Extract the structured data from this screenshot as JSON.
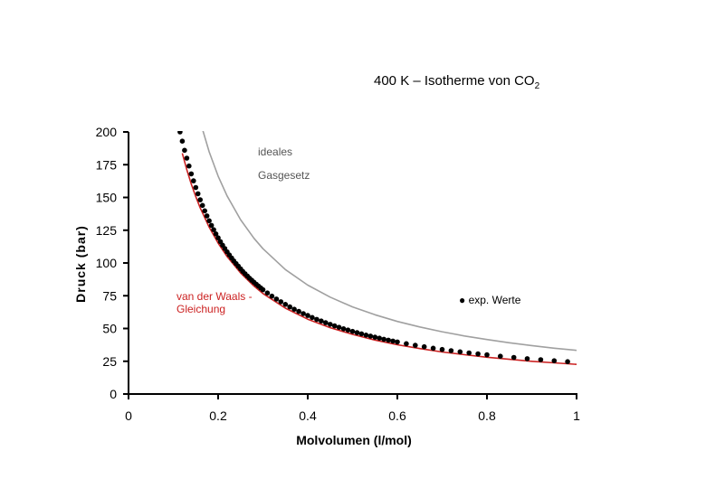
{
  "chart_data": {
    "type": "line",
    "title": "400 K – Isotherme von CO",
    "title_subscript": "2",
    "xlabel": "Molvolumen (l/mol)",
    "ylabel": "Druck (bar)",
    "xlim": [
      0,
      1
    ],
    "ylim": [
      0,
      200
    ],
    "x_ticks": [
      "0",
      "0.2",
      "0.4",
      "0.6",
      "0.8",
      "1"
    ],
    "y_ticks": [
      "0",
      "25",
      "50",
      "75",
      "100",
      "125",
      "150",
      "175",
      "200"
    ],
    "series": [
      {
        "name": "ideales Gasgesetz",
        "label_lines": [
          "ideales",
          "Gasgesetz"
        ],
        "style": "line",
        "color": "#a0a0a0",
        "x": [
          0.16,
          0.18,
          0.2,
          0.22,
          0.25,
          0.28,
          0.3,
          0.35,
          0.4,
          0.45,
          0.5,
          0.55,
          0.6,
          0.65,
          0.7,
          0.75,
          0.8,
          0.85,
          0.9,
          0.95,
          1.0
        ],
        "y": [
          207.9,
          184.8,
          166.3,
          151.2,
          133.0,
          118.8,
          110.9,
          95.0,
          83.1,
          73.9,
          66.5,
          60.5,
          55.4,
          51.2,
          47.5,
          44.3,
          41.6,
          39.1,
          37.0,
          35.0,
          33.3
        ]
      },
      {
        "name": "van der Waals - Gleichung",
        "label_lines": [
          "van der Waals -",
          "Gleichung"
        ],
        "style": "line",
        "color": "#cc2222",
        "x": [
          0.12,
          0.13,
          0.14,
          0.15,
          0.16,
          0.18,
          0.2,
          0.22,
          0.25,
          0.28,
          0.3,
          0.35,
          0.4,
          0.45,
          0.5,
          0.55,
          0.6,
          0.65,
          0.7,
          0.75,
          0.8,
          0.85,
          0.9,
          0.95,
          1.0
        ],
        "y": [
          183.7,
          171.2,
          160.3,
          150.6,
          142.0,
          127.3,
          115.2,
          104.9,
          92.4,
          82.4,
          76.7,
          65.5,
          57.1,
          50.6,
          45.5,
          41.2,
          37.6,
          34.7,
          32.1,
          30.0,
          28.1,
          26.5,
          25.0,
          23.8,
          22.6
        ]
      },
      {
        "name": "exp. Werte",
        "label_lines": [
          "● exp. Werte"
        ],
        "style": "markers",
        "color": "#000000",
        "x": [
          0.115,
          0.12,
          0.125,
          0.13,
          0.135,
          0.14,
          0.145,
          0.15,
          0.155,
          0.16,
          0.165,
          0.17,
          0.175,
          0.18,
          0.185,
          0.19,
          0.195,
          0.2,
          0.205,
          0.21,
          0.215,
          0.22,
          0.225,
          0.23,
          0.235,
          0.24,
          0.245,
          0.25,
          0.255,
          0.26,
          0.265,
          0.27,
          0.275,
          0.28,
          0.285,
          0.29,
          0.295,
          0.3,
          0.31,
          0.32,
          0.33,
          0.34,
          0.35,
          0.36,
          0.37,
          0.38,
          0.39,
          0.4,
          0.41,
          0.42,
          0.43,
          0.44,
          0.45,
          0.46,
          0.47,
          0.48,
          0.49,
          0.5,
          0.51,
          0.52,
          0.53,
          0.54,
          0.55,
          0.56,
          0.57,
          0.58,
          0.59,
          0.6,
          0.62,
          0.64,
          0.66,
          0.68,
          0.7,
          0.72,
          0.74,
          0.76,
          0.78,
          0.8,
          0.83,
          0.86,
          0.89,
          0.92,
          0.95,
          0.98
        ],
        "y": [
          200.0,
          193.0,
          186.0,
          180.0,
          174.0,
          168.0,
          162.7,
          157.6,
          152.8,
          148.2,
          143.9,
          139.8,
          135.9,
          132.2,
          128.7,
          125.4,
          122.2,
          119.2,
          116.3,
          113.6,
          111.0,
          108.5,
          106.1,
          103.8,
          101.6,
          99.5,
          97.5,
          95.5,
          93.6,
          91.8,
          90.1,
          88.4,
          86.8,
          85.3,
          83.8,
          82.4,
          81.0,
          79.6,
          77.1,
          74.7,
          72.5,
          70.4,
          68.4,
          66.5,
          64.7,
          63.0,
          61.4,
          59.9,
          58.4,
          57.0,
          55.7,
          54.4,
          53.2,
          52.0,
          50.9,
          49.8,
          48.8,
          47.8,
          46.8,
          45.9,
          45.0,
          44.2,
          43.4,
          42.6,
          41.8,
          41.1,
          40.4,
          39.7,
          38.4,
          37.2,
          36.1,
          35.0,
          34.0,
          33.1,
          32.2,
          31.4,
          30.6,
          29.9,
          28.8,
          27.9,
          27.0,
          26.2,
          25.4,
          24.7
        ]
      }
    ],
    "grid": false,
    "legend": "inline annotations"
  }
}
